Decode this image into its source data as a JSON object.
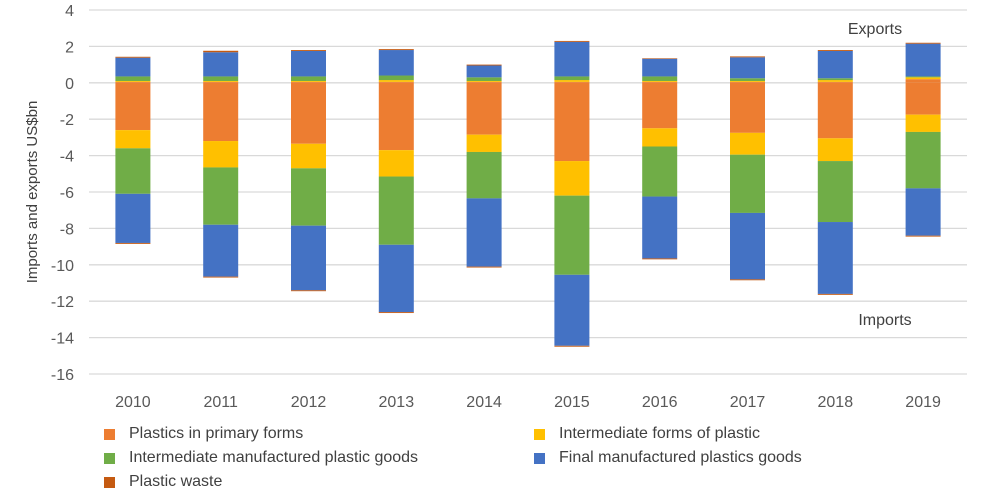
{
  "chart_data": {
    "type": "bar",
    "stacked": true,
    "title": "",
    "xlabel": "",
    "ylabel": "Imports and exports US$bn",
    "ylim": [
      -16,
      4
    ],
    "yticks": [
      4,
      2,
      0,
      -2,
      -4,
      -6,
      -8,
      -10,
      -12,
      -14,
      -16
    ],
    "grid": true,
    "legend_position": "bottom",
    "categories": [
      "2010",
      "2011",
      "2012",
      "2013",
      "2014",
      "2015",
      "2016",
      "2017",
      "2018",
      "2019"
    ],
    "annotations": [
      {
        "text": "Exports",
        "near": "top-right"
      },
      {
        "text": "Imports",
        "near": "bottom-right"
      }
    ],
    "series": [
      {
        "name": "Plastics in primary forms",
        "color": "#ED7D31",
        "exports": [
          0.05,
          0.05,
          0.05,
          0.05,
          0.05,
          0.05,
          0.05,
          0.05,
          0.05,
          0.2
        ],
        "imports": [
          -2.6,
          -3.2,
          -3.35,
          -3.7,
          -2.85,
          -4.3,
          -2.5,
          -2.75,
          -3.05,
          -1.75
        ]
      },
      {
        "name": "Intermediate forms of plastic",
        "color": "#FFC000",
        "exports": [
          0.05,
          0.05,
          0.05,
          0.1,
          0.05,
          0.1,
          0.05,
          0.05,
          0.1,
          0.1
        ],
        "imports": [
          -1.0,
          -1.45,
          -1.35,
          -1.45,
          -0.95,
          -1.9,
          -1.0,
          -1.2,
          -1.25,
          -0.95
        ]
      },
      {
        "name": "Intermediate manufactured plastic goods",
        "color": "#70AD47",
        "exports": [
          0.25,
          0.25,
          0.25,
          0.25,
          0.2,
          0.2,
          0.25,
          0.15,
          0.1,
          0.05
        ],
        "imports": [
          -2.5,
          -3.15,
          -3.15,
          -3.75,
          -2.55,
          -4.35,
          -2.75,
          -3.2,
          -3.35,
          -3.1
        ]
      },
      {
        "name": "Final manufactured plastics goods",
        "color": "#4472C4",
        "exports": [
          1.03,
          1.33,
          1.4,
          1.4,
          0.65,
          1.9,
          0.97,
          1.15,
          1.5,
          1.8
        ],
        "imports": [
          -2.7,
          -2.85,
          -3.55,
          -3.7,
          -3.75,
          -3.9,
          -3.4,
          -3.65,
          -3.95,
          -2.6
        ]
      },
      {
        "name": "Plastic waste",
        "color": "#C55A11",
        "exports": [
          0.05,
          0.08,
          0.05,
          0.05,
          0.05,
          0.05,
          0.03,
          0.05,
          0.05,
          0.05
        ],
        "imports": [
          -0.05,
          -0.05,
          -0.05,
          -0.05,
          -0.05,
          -0.05,
          -0.05,
          -0.05,
          -0.05,
          -0.05
        ]
      }
    ]
  }
}
